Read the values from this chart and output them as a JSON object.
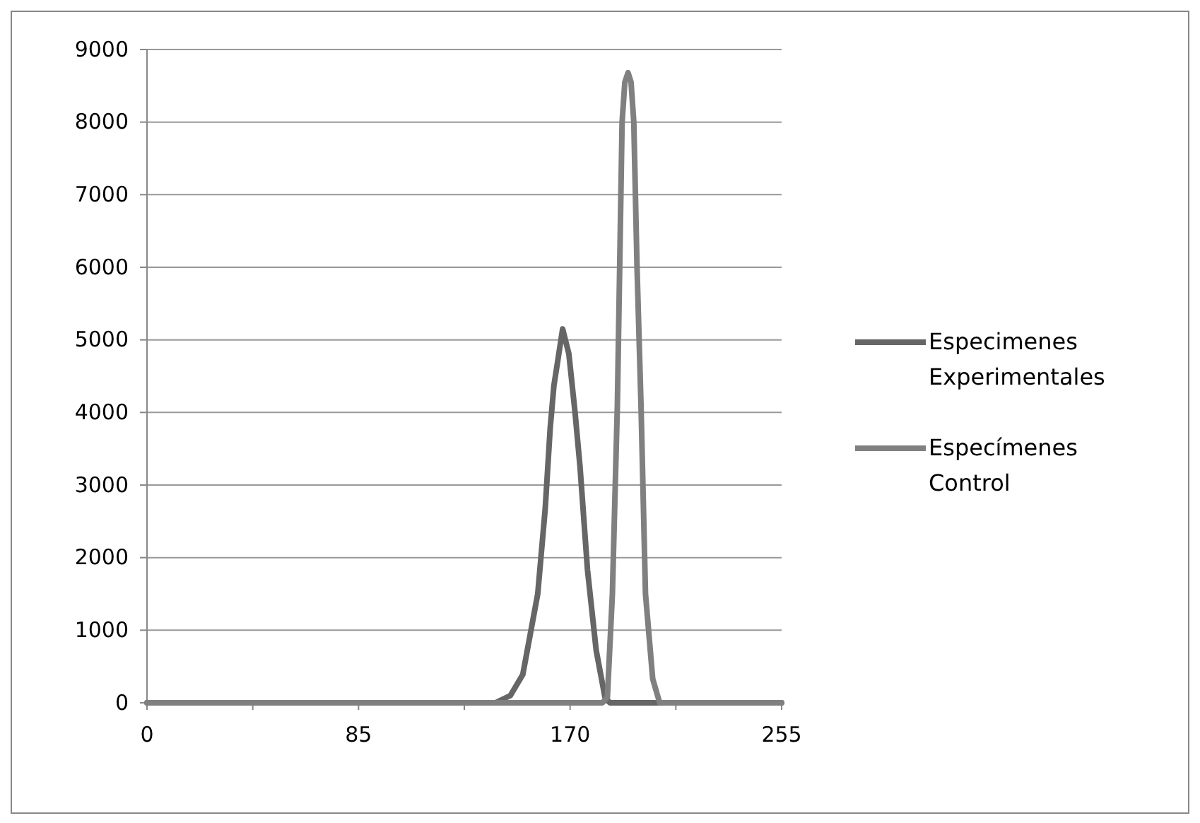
{
  "chart_data": {
    "type": "line",
    "xlim": [
      0,
      255
    ],
    "ylim": [
      0,
      9000
    ],
    "xticks": [
      0,
      {
        "value": 42.5,
        "label": null
      },
      85,
      {
        "value": 127.5,
        "label": null
      },
      170,
      {
        "value": 212.5,
        "label": null
      },
      255
    ],
    "yticks": [
      0,
      1000,
      2000,
      3000,
      4000,
      5000,
      6000,
      7000,
      8000,
      9000
    ],
    "grid": "y",
    "legend": "right",
    "line_style": "solid",
    "marker": "none",
    "series": [
      {
        "name": "Especimenes Experimentales",
        "color": "#666666",
        "x": [
          0,
          140,
          146,
          151,
          157,
          160,
          162,
          163.5,
          165,
          167,
          169.5,
          172,
          174,
          177,
          180.5,
          184,
          186,
          255
        ],
        "values": [
          0,
          0,
          100,
          390,
          1500,
          2670,
          3780,
          4370,
          4700,
          5150,
          4810,
          4000,
          3250,
          1830,
          720,
          80,
          0,
          0
        ]
      },
      {
        "name": "Especímenes Control",
        "color": "#808080",
        "x": [
          0,
          183,
          185,
          187,
          189,
          190.9,
          192,
          193.3,
          194.5,
          195.6,
          196.9,
          198.5,
          200.3,
          203.2,
          206,
          255
        ],
        "values": [
          0,
          0,
          80,
          1500,
          4100,
          8000,
          8550,
          8680,
          8550,
          8000,
          6000,
          4100,
          1500,
          330,
          0,
          0
        ]
      }
    ]
  }
}
